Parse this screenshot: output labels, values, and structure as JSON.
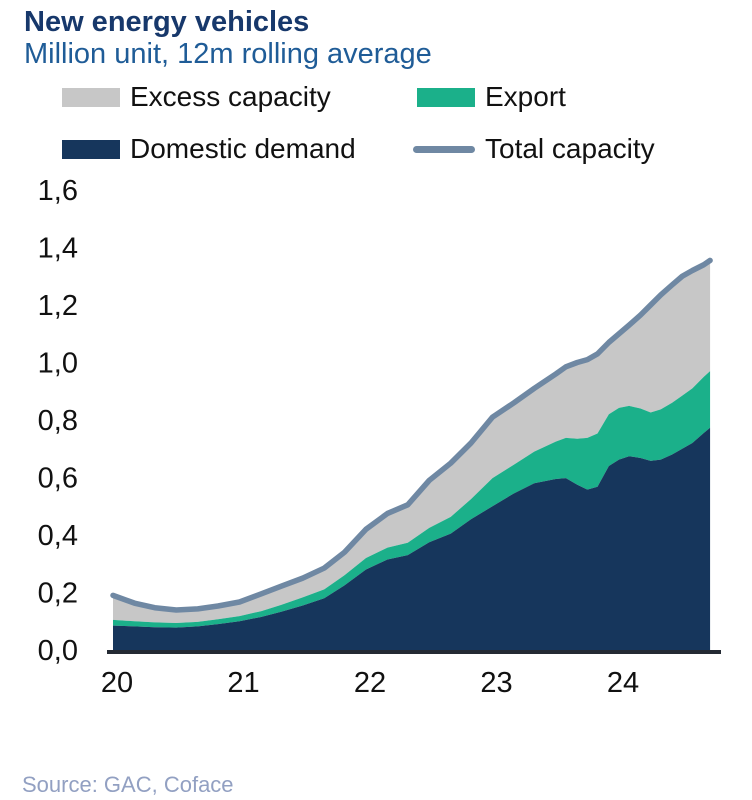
{
  "header": {
    "title": "New energy vehicles",
    "subtitle": "Million unit, 12m rolling average"
  },
  "legend": {
    "items": [
      {
        "key": "excess",
        "label": "Excess capacity",
        "color": "#c7c7c7",
        "swatch": "box"
      },
      {
        "key": "export",
        "label": "Export",
        "color": "#1bb08a",
        "swatch": "box"
      },
      {
        "key": "domestic",
        "label": "Domestic demand",
        "color": "#16365c",
        "swatch": "box"
      },
      {
        "key": "total",
        "label": "Total capacity",
        "color": "#6f88a3",
        "swatch": "line"
      }
    ]
  },
  "source": {
    "text": "Source: GAC, Coface"
  },
  "chart_data": {
    "type": "area",
    "title": "New energy vehicles",
    "subtitle": "Million unit, 12m rolling average",
    "stacked": true,
    "x_unit": "year (decimal, monthly 12m rolling average)",
    "xlim": [
      2020.0,
      2024.75
    ],
    "ylim": [
      0,
      1.6
    ],
    "grid": false,
    "legend_position": "top",
    "x": [
      2020.0,
      2020.17,
      2020.33,
      2020.5,
      2020.67,
      2020.83,
      2021.0,
      2021.17,
      2021.33,
      2021.5,
      2021.67,
      2021.83,
      2022.0,
      2022.17,
      2022.33,
      2022.5,
      2022.67,
      2022.83,
      2023.0,
      2023.17,
      2023.33,
      2023.5,
      2023.58,
      2023.67,
      2023.75,
      2023.83,
      2023.92,
      2024.0,
      2024.08,
      2024.17,
      2024.25,
      2024.33,
      2024.42,
      2024.5,
      2024.58,
      2024.67,
      2024.72
    ],
    "series": [
      {
        "name": "Domestic demand",
        "role": "area-bottom",
        "color": "#16365c",
        "values": [
          0.085,
          0.082,
          0.079,
          0.078,
          0.082,
          0.09,
          0.1,
          0.115,
          0.133,
          0.155,
          0.18,
          0.225,
          0.28,
          0.315,
          0.33,
          0.375,
          0.405,
          0.455,
          0.5,
          0.545,
          0.58,
          0.595,
          0.598,
          0.575,
          0.558,
          0.568,
          0.64,
          0.662,
          0.674,
          0.668,
          0.658,
          0.662,
          0.68,
          0.7,
          0.72,
          0.755,
          0.773
        ]
      },
      {
        "name": "Export",
        "role": "area-middle",
        "color": "#1bb08a",
        "values": [
          0.02,
          0.018,
          0.017,
          0.016,
          0.016,
          0.017,
          0.018,
          0.02,
          0.024,
          0.028,
          0.031,
          0.035,
          0.04,
          0.041,
          0.043,
          0.05,
          0.058,
          0.07,
          0.098,
          0.1,
          0.11,
          0.13,
          0.14,
          0.16,
          0.18,
          0.185,
          0.18,
          0.18,
          0.175,
          0.172,
          0.168,
          0.175,
          0.18,
          0.185,
          0.19,
          0.195,
          0.197
        ]
      },
      {
        "name": "Excess capacity",
        "role": "area-top-fill-to-total",
        "color": "#c7c7c7",
        "note": "drawn as the gap between (Domestic demand + Export) and Total capacity"
      },
      {
        "name": "Total capacity",
        "role": "line",
        "color": "#6f88a3",
        "values": [
          0.19,
          0.163,
          0.147,
          0.139,
          0.143,
          0.153,
          0.167,
          0.195,
          0.222,
          0.25,
          0.285,
          0.34,
          0.42,
          0.475,
          0.505,
          0.59,
          0.65,
          0.72,
          0.81,
          0.86,
          0.91,
          0.96,
          0.985,
          1.0,
          1.01,
          1.03,
          1.07,
          1.1,
          1.13,
          1.165,
          1.2,
          1.235,
          1.27,
          1.3,
          1.32,
          1.34,
          1.355
        ]
      }
    ],
    "y_axis": {
      "ticks": [
        {
          "v": 0.0,
          "label": "0,0"
        },
        {
          "v": 0.2,
          "label": "0,2"
        },
        {
          "v": 0.4,
          "label": "0,4"
        },
        {
          "v": 0.6,
          "label": "0,6"
        },
        {
          "v": 0.8,
          "label": "0,8"
        },
        {
          "v": 1.0,
          "label": "1,0"
        },
        {
          "v": 1.2,
          "label": "1,2"
        },
        {
          "v": 1.4,
          "label": "1,4"
        },
        {
          "v": 1.6,
          "label": "1,6"
        }
      ]
    },
    "x_axis": {
      "ticks": [
        {
          "v": 2020,
          "label": "20"
        },
        {
          "v": 2021,
          "label": "21"
        },
        {
          "v": 2022,
          "label": "22"
        },
        {
          "v": 2023,
          "label": "23"
        },
        {
          "v": 2024,
          "label": "24"
        }
      ]
    },
    "axis_line_color": "#242a33"
  }
}
